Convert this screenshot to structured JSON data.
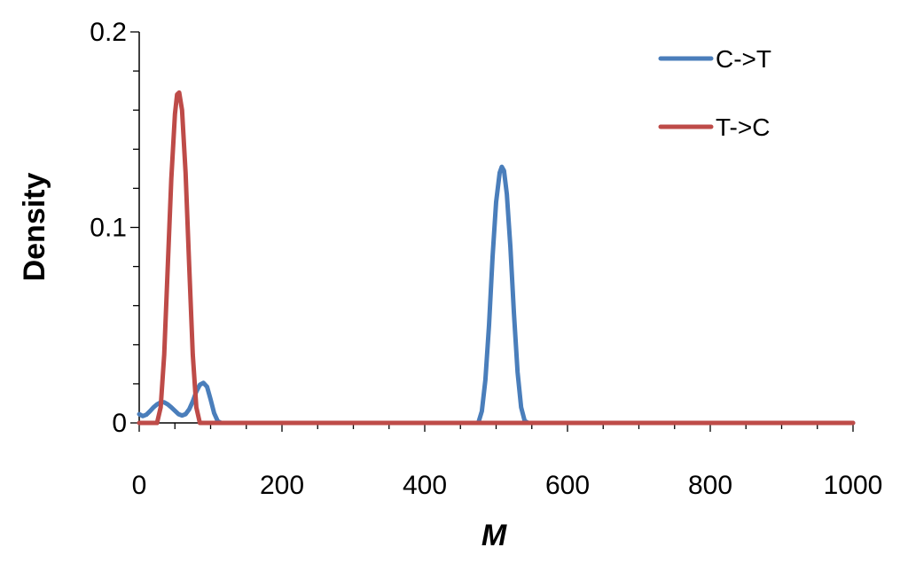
{
  "chart_data": {
    "type": "line",
    "title": "",
    "xlabel": "M",
    "ylabel": "Density",
    "xlim": [
      0,
      1000
    ],
    "ylim": [
      0,
      0.2
    ],
    "x_ticks": [
      0,
      200,
      400,
      600,
      800,
      1000
    ],
    "y_ticks": [
      0,
      0.1,
      0.2
    ],
    "x_tick_labels": [
      "0",
      "200",
      "400",
      "600",
      "800",
      "1000"
    ],
    "y_tick_labels": [
      "0",
      "0.1",
      "0.2"
    ],
    "grid": false,
    "legend_position": "top-right",
    "series": [
      {
        "name": "C->T",
        "color": "#4a7ebb",
        "points": [
          [
            0,
            0.0045
          ],
          [
            5,
            0.0035
          ],
          [
            10,
            0.0042
          ],
          [
            15,
            0.006
          ],
          [
            20,
            0.008
          ],
          [
            25,
            0.0095
          ],
          [
            30,
            0.0105
          ],
          [
            35,
            0.0105
          ],
          [
            40,
            0.0095
          ],
          [
            45,
            0.008
          ],
          [
            50,
            0.0062
          ],
          [
            55,
            0.0045
          ],
          [
            60,
            0.0038
          ],
          [
            65,
            0.0045
          ],
          [
            70,
            0.007
          ],
          [
            75,
            0.011
          ],
          [
            80,
            0.016
          ],
          [
            85,
            0.0195
          ],
          [
            90,
            0.0205
          ],
          [
            95,
            0.0185
          ],
          [
            100,
            0.012
          ],
          [
            105,
            0.005
          ],
          [
            110,
            0.0008
          ],
          [
            115,
            0
          ],
          [
            475,
            0
          ],
          [
            480,
            0.006
          ],
          [
            485,
            0.022
          ],
          [
            490,
            0.05
          ],
          [
            495,
            0.085
          ],
          [
            500,
            0.113
          ],
          [
            505,
            0.128
          ],
          [
            508,
            0.131
          ],
          [
            511,
            0.129
          ],
          [
            515,
            0.117
          ],
          [
            520,
            0.09
          ],
          [
            525,
            0.056
          ],
          [
            530,
            0.026
          ],
          [
            535,
            0.008
          ],
          [
            540,
            0.001
          ],
          [
            545,
            0
          ],
          [
            1000,
            0
          ]
        ]
      },
      {
        "name": "T->C",
        "color": "#be4b48",
        "points": [
          [
            0,
            0
          ],
          [
            25,
            0
          ],
          [
            30,
            0.008
          ],
          [
            35,
            0.035
          ],
          [
            40,
            0.08
          ],
          [
            45,
            0.125
          ],
          [
            50,
            0.158
          ],
          [
            53,
            0.168
          ],
          [
            56,
            0.169
          ],
          [
            60,
            0.16
          ],
          [
            65,
            0.128
          ],
          [
            70,
            0.08
          ],
          [
            75,
            0.035
          ],
          [
            80,
            0.008
          ],
          [
            85,
            0
          ],
          [
            1000,
            0
          ]
        ]
      }
    ]
  }
}
